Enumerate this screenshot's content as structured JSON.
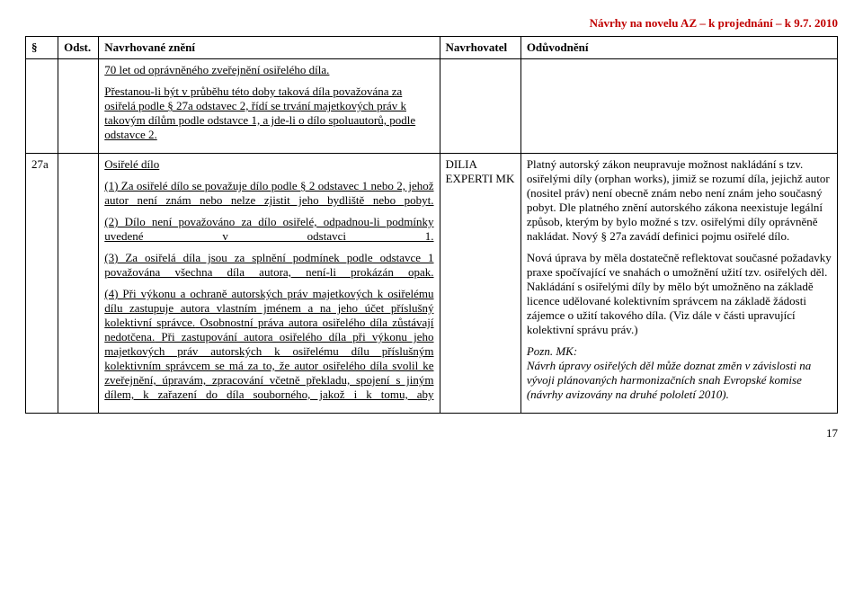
{
  "header": {
    "right": "Návrhy na novelu AZ – k projednání – k 9.7. 2010"
  },
  "columns": {
    "c1": "§",
    "c2": "Odst.",
    "c3": "Navrhované znění",
    "c4": "Navrhovatel",
    "c5": "Odůvodnění"
  },
  "row1": {
    "para": "",
    "odst": "",
    "zneni": {
      "p1": "70 let od oprávněného zveřejnění osiřelého díla.",
      "p2": "Přestanou-li být v průběhu této doby taková díla považována za osiřelá podle § 27a odstavec 2, řídí se trvání majetkových práv k takovým dílům podle odstavce 1, a jde-li o dílo spoluautorů, podle odstavce 2."
    },
    "nav": "",
    "oduv": ""
  },
  "row2": {
    "para": "27a",
    "odst": "",
    "zneni": {
      "title": "Osiřelé dílo",
      "p1a": "(1) Za osiřelé dílo se považuje dílo podle § 2 odstavec 1 nebo 2, jehož autor není znám nebo nelze zjistit jeho bydliště nebo pobyt.",
      "p2a": "(2) Dílo není považováno za dílo osiřelé, odpadnou-li podmínky uvedené v odstavci 1.",
      "p3a": "(3) Za osiřelá díla jsou za splnění podmínek podle odstavce 1 považována všechna díla autora, není-li prokázán opak.",
      "p4a": "(4) Při výkonu a ochraně autorských práv majetkových k osiřelému dílu zastupuje autora vlastním jménem a na jeho účet příslušný kolektivní správce.",
      "p4b": " Osobnostní práva autora osiřelého díla zůstávají nedotčena.",
      "p4c": " Při zastupování autora osiřelého díla při výkonu jeho majetkových práv autorských k osiřelému dílu příslušným kolektivním správcem se má za to, že autor osiřelého díla svolil ke zveřejnění, úpravám, zpracování včetně překladu, spojení s jiným dílem, k zařazení do díla souborného, jakož i k tomu, aby"
    },
    "nav": "DILIA EXPERTI MK",
    "oduv": {
      "p1": "Platný autorský zákon neupravuje možnost nakládání s tzv. osiřelými díly (orphan works), jimiž se rozumí díla, jejichž autor (nositel práv) není obecně znám nebo není znám jeho současný pobyt. Dle platného znění autorského zákona neexistuje legální způsob, kterým by bylo možné s tzv. osiřelými díly oprávněně nakládat. Nový § 27a zavádí definici pojmu osiřelé dílo.",
      "p2": "Nová úprava by měla dostatečně reflektovat současné požadavky praxe spočívající ve snahách o umožnění užití tzv. osiřelých děl. Nakládání s osiřelými díly by mělo být umožněno na základě licence udělované kolektivním správcem na základě žádosti zájemce o užití takového díla. (Viz dále v části upravující kolektivní správu práv.)",
      "p3a": "Pozn. MK:",
      "p3b": "Návrh úpravy osiřelých děl může doznat změn v závislosti na vývoji plánovaných harmonizačních snah Evropské komise (návrhy avizovány na druhé pololetí 2010)."
    }
  },
  "footer": {
    "pagenum": "17"
  }
}
